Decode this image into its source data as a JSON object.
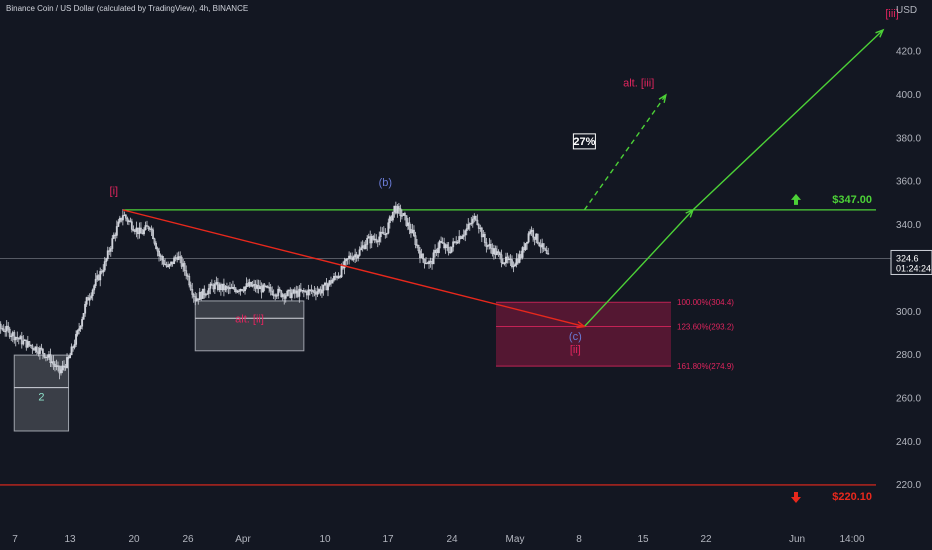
{
  "header": {
    "title": "Binance Coin / US Dollar (calculated by TradingView), 4h, BINANCE"
  },
  "axis": {
    "currency": "USD"
  },
  "price_box": {
    "price": "324.6",
    "countdown": "01:24:24"
  },
  "colors": {
    "background": "#131722",
    "candle": "#d1d4dc",
    "green": "#4cd137",
    "red": "#e8281c",
    "magenta": "#e0255e",
    "blue_label": "#6a7bd6",
    "teal_label": "#8ce0c9",
    "zone_fill": "#80183e",
    "gray_box": "#5b5e66"
  },
  "chart_data": {
    "type": "candlestick",
    "xlabel": "",
    "ylabel": "",
    "x_ticks": [
      "7",
      "13",
      "20",
      "26",
      "Apr",
      "10",
      "17",
      "24",
      "May",
      "8",
      "15",
      "22",
      "Jun",
      "14:00"
    ],
    "y_ticks": [
      "220.0",
      "240.0",
      "260.0",
      "280.0",
      "300.0",
      "320.0",
      "340.0",
      "360.0",
      "380.0",
      "400.0",
      "420.0"
    ],
    "ylim": [
      209,
      447
    ],
    "grid": false,
    "price_path": [
      [
        "Mar 1",
        295
      ],
      [
        "Mar 5",
        292
      ],
      [
        "Mar 7",
        286
      ],
      [
        "Mar 9",
        282
      ],
      [
        "Mar 10",
        278
      ],
      [
        "Mar 11",
        272
      ],
      [
        "Mar 12",
        278
      ],
      [
        "Mar 13",
        290
      ],
      [
        "Mar 14",
        305
      ],
      [
        "Mar 16",
        322
      ],
      [
        "Mar 17",
        335
      ],
      [
        "Mar 18",
        345
      ],
      [
        "Mar 19",
        340
      ],
      [
        "Mar 20",
        336
      ],
      [
        "Mar 21",
        340
      ],
      [
        "Mar 22",
        326
      ],
      [
        "Mar 23",
        320
      ],
      [
        "Mar 24",
        326
      ],
      [
        "Mar 25",
        318
      ],
      [
        "Mar 26",
        306
      ],
      [
        "Mar 28",
        312
      ],
      [
        "Mar 30",
        310
      ],
      [
        "Apr 1",
        312
      ],
      [
        "Apr 3",
        310
      ],
      [
        "Apr 5",
        308
      ],
      [
        "Apr 7",
        309
      ],
      [
        "Apr 9",
        310
      ],
      [
        "Apr 11",
        318
      ],
      [
        "Apr 12",
        325
      ],
      [
        "Apr 13",
        327
      ],
      [
        "Apr 14",
        333
      ],
      [
        "Apr 15",
        334
      ],
      [
        "Apr 16",
        336
      ],
      [
        "Apr 17",
        348
      ],
      [
        "Apr 18",
        344
      ],
      [
        "Apr 19",
        336
      ],
      [
        "Apr 20",
        325
      ],
      [
        "Apr 21",
        322
      ],
      [
        "Apr 22",
        332
      ],
      [
        "Apr 23",
        328
      ],
      [
        "Apr 24",
        334
      ],
      [
        "Apr 25",
        338
      ],
      [
        "Apr 26",
        344
      ],
      [
        "Apr 27",
        332
      ],
      [
        "Apr 28",
        328
      ],
      [
        "Apr 29",
        324
      ],
      [
        "Apr 30",
        322
      ],
      [
        "May 1",
        326
      ],
      [
        "May 2",
        338
      ],
      [
        "May 3",
        332
      ],
      [
        "May 4",
        324.6
      ]
    ],
    "horizontal_levels": [
      {
        "price": 347,
        "label": "$347.00",
        "color": "#4cd137",
        "marker": "up-arrow"
      },
      {
        "price": 220.1,
        "label": "$220.10",
        "color": "#e8281c",
        "marker": "down-arrow"
      },
      {
        "price": 324.6,
        "label": "",
        "color": "#9598a1",
        "marker": "none"
      }
    ],
    "fibonacci_zone": {
      "levels": [
        {
          "price": 304.4,
          "label": "100.00%(304.4)"
        },
        {
          "price": 293.2,
          "label": "123.60%(293.2)"
        },
        {
          "price": 274.9,
          "label": "161.80%(274.9)"
        }
      ]
    },
    "gray_boxes": [
      {
        "from": "Mar 6",
        "to": "Mar 12",
        "top": 280,
        "bottom": 245,
        "mid": 265
      },
      {
        "from": "Mar 26",
        "to": "Apr 7",
        "top": 305,
        "bottom": 282,
        "mid": 297
      }
    ],
    "projections": [
      {
        "style": "solid",
        "color": "#4cd137",
        "points": [
          [
            "May 8",
            293.2
          ],
          [
            "May 20",
            347
          ],
          [
            "Jun 10",
            430
          ]
        ]
      },
      {
        "style": "dashed",
        "color": "#4cd137",
        "points": [
          [
            "May 8",
            347
          ],
          [
            "May 17",
            400
          ]
        ]
      },
      {
        "style": "solid",
        "color": "#e8281c",
        "arrow": true,
        "points": [
          [
            "Mar 18",
            347
          ],
          [
            "May 8",
            293.2
          ]
        ]
      }
    ],
    "annotations": [
      {
        "text": "[i]",
        "at": [
          "Mar 17",
          354
        ],
        "color": "#e0255e"
      },
      {
        "text": "(b)",
        "at": [
          "Apr 16",
          358
        ],
        "color": "#6a7bd6"
      },
      {
        "text": "alt. [ii]",
        "at": [
          "Apr 1",
          295
        ],
        "color": "#e0255e"
      },
      {
        "text": "2",
        "at": [
          "Mar 9",
          259
        ],
        "color": "#8ce0c9"
      },
      {
        "text": "(c)",
        "at": [
          "May 7",
          287
        ],
        "color": "#6a7bd6"
      },
      {
        "text": "[ii]",
        "at": [
          "May 7",
          281
        ],
        "color": "#e0255e"
      },
      {
        "text": "alt. [iii]",
        "at": [
          "May 14",
          404
        ],
        "color": "#e0255e"
      },
      {
        "text": "[iii]",
        "at": [
          "Jun 11",
          436
        ],
        "color": "#e0255e"
      },
      {
        "text": "27%",
        "at": [
          "May 8",
          377
        ],
        "color": "#ffffff",
        "boxed": true
      }
    ]
  }
}
